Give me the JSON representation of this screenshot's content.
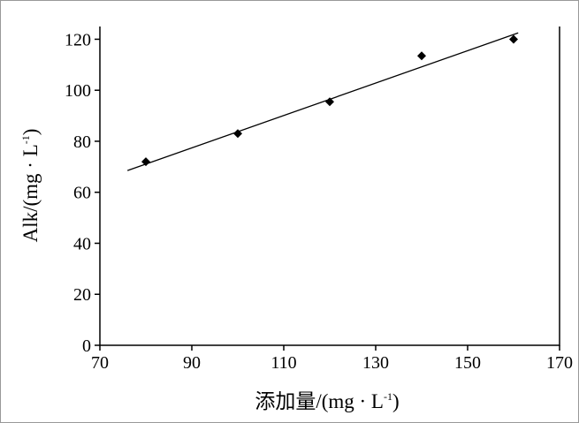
{
  "chart_data": {
    "type": "scatter",
    "xlabel": "添加量/(mg · L",
    "xlabel_sup": "-1",
    "xlabel_end": ")",
    "ylabel": "Alk/(mg · L",
    "ylabel_sup": "-1",
    "ylabel_end": ")",
    "xlim": [
      70,
      170
    ],
    "xticks": [
      70,
      90,
      110,
      130,
      150,
      170
    ],
    "ylim": [
      0,
      125
    ],
    "yticks": [
      0,
      20,
      40,
      60,
      80,
      100,
      120
    ],
    "color": "#000000",
    "series": [
      {
        "x": [
          80,
          100,
          120,
          140,
          160
        ],
        "values": [
          72,
          83,
          95.5,
          113.5,
          120
        ]
      }
    ],
    "fit_line": {
      "x": [
        76,
        161
      ],
      "values": [
        68.5,
        122.5
      ]
    }
  }
}
